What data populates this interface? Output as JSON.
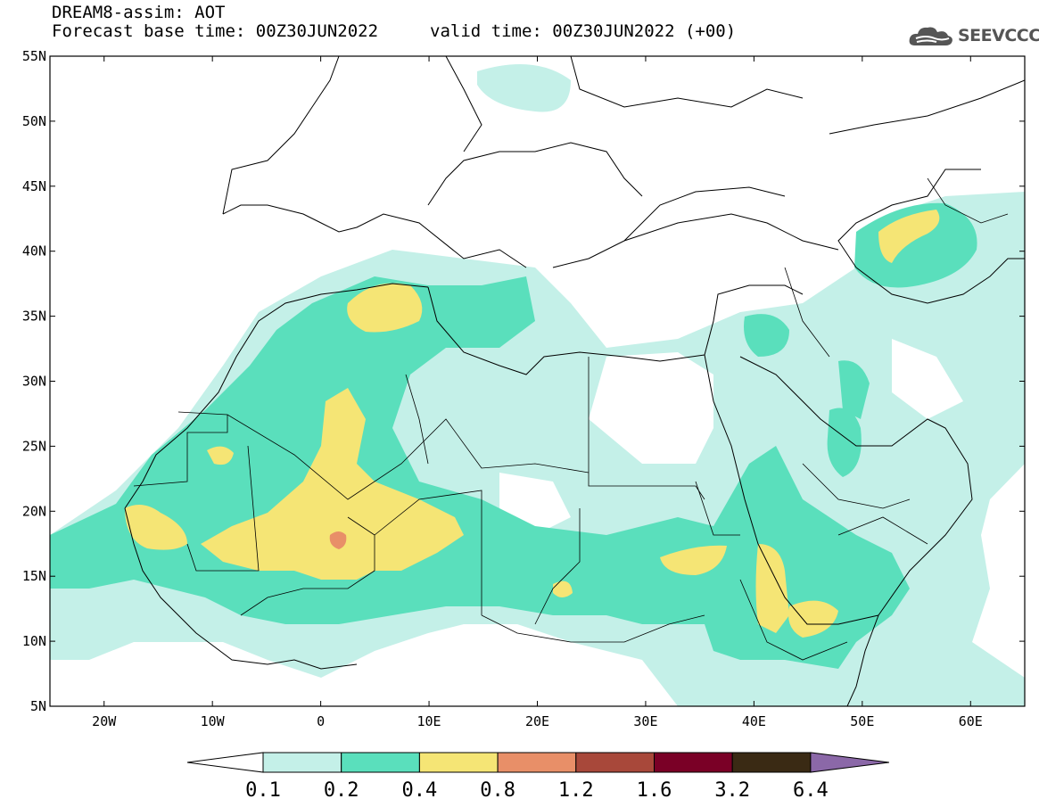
{
  "header": {
    "model_title": "DREAM8-assim: AOT",
    "base_time": "Forecast base time: 00Z30JUN2022",
    "valid_time": "valid time: 00Z30JUN2022 (+00)",
    "logo_text": "SEEVCCC",
    "logo_icon": "cloud-icon"
  },
  "axes": {
    "lat_labels": [
      "55N",
      "50N",
      "45N",
      "40N",
      "35N",
      "30N",
      "25N",
      "20N",
      "15N",
      "10N",
      "5N"
    ],
    "lon_labels": [
      "20W",
      "10W",
      "0",
      "10E",
      "20E",
      "30E",
      "40E",
      "50E",
      "60E"
    ],
    "lat_range": [
      5,
      55
    ],
    "lon_range": [
      -25,
      65
    ]
  },
  "colorbar": {
    "levels": [
      "0.1",
      "0.2",
      "0.4",
      "0.8",
      "1.2",
      "1.6",
      "3.2",
      "6.4"
    ],
    "colors": [
      "#ffffff",
      "#c4f0e8",
      "#5adfbc",
      "#f5e575",
      "#e88f68",
      "#a8483a",
      "#7a0026",
      "#3a2a14",
      "#8b68a8"
    ]
  }
}
